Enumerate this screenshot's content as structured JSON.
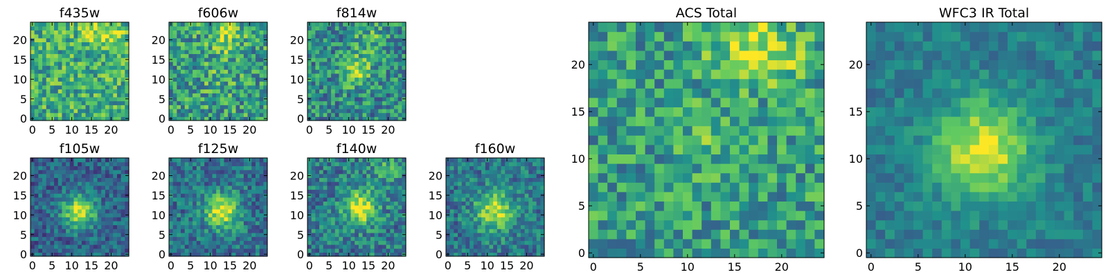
{
  "figure": {
    "colormap": "viridis",
    "colormap_stops": [
      "#440154",
      "#3b528b",
      "#21918c",
      "#5ec962",
      "#fde725"
    ]
  },
  "chart_data": [
    {
      "type": "heatmap",
      "title": "f435w",
      "grid": [
        25,
        25
      ],
      "xticks": [
        "0",
        "5",
        "10",
        "15",
        "20"
      ],
      "yticks": [
        "0",
        "5",
        "10",
        "15",
        "20"
      ],
      "xlim": [
        0,
        24
      ],
      "ylim": [
        0,
        24
      ],
      "noise": 0.26,
      "bias": 0.62,
      "blobs": [
        [
          19,
          21,
          3,
          0.25
        ],
        [
          14,
          22,
          2,
          0.15
        ]
      ],
      "seed": 11
    },
    {
      "type": "heatmap",
      "title": "f606w",
      "grid": [
        25,
        25
      ],
      "xticks": [
        "0",
        "5",
        "10",
        "15",
        "20"
      ],
      "yticks": [
        "0",
        "5",
        "10",
        "15",
        "20"
      ],
      "xlim": [
        0,
        24
      ],
      "ylim": [
        0,
        24
      ],
      "noise": 0.28,
      "bias": 0.55,
      "blobs": [
        [
          14,
          21,
          3,
          0.3
        ],
        [
          12,
          11,
          3,
          0.1
        ]
      ],
      "seed": 23
    },
    {
      "type": "heatmap",
      "title": "f814w",
      "grid": [
        25,
        25
      ],
      "xticks": [
        "0",
        "5",
        "10",
        "15",
        "20"
      ],
      "yticks": [
        "0",
        "5",
        "10",
        "15",
        "20"
      ],
      "xlim": [
        0,
        24
      ],
      "ylim": [
        0,
        24
      ],
      "noise": 0.26,
      "bias": 0.48,
      "blobs": [
        [
          12,
          12,
          2.5,
          0.4
        ],
        [
          15,
          20,
          3,
          0.2
        ]
      ],
      "seed": 37
    },
    {
      "type": "heatmap",
      "title": "f105w",
      "grid": [
        25,
        25
      ],
      "xticks": [
        "0",
        "5",
        "10",
        "15",
        "20"
      ],
      "yticks": [
        "0",
        "5",
        "10",
        "15",
        "20"
      ],
      "xlim": [
        0,
        24
      ],
      "ylim": [
        0,
        24
      ],
      "noise": 0.18,
      "bias": 0.32,
      "blobs": [
        [
          12,
          11,
          3,
          0.6
        ]
      ],
      "seed": 41
    },
    {
      "type": "heatmap",
      "title": "f125w",
      "grid": [
        25,
        25
      ],
      "xticks": [
        "0",
        "5",
        "10",
        "15",
        "20"
      ],
      "yticks": [
        "0",
        "5",
        "10",
        "15",
        "20"
      ],
      "xlim": [
        0,
        24
      ],
      "ylim": [
        0,
        24
      ],
      "noise": 0.2,
      "bias": 0.38,
      "blobs": [
        [
          13,
          11,
          3,
          0.6
        ]
      ],
      "seed": 53
    },
    {
      "type": "heatmap",
      "title": "f140w",
      "grid": [
        25,
        25
      ],
      "xticks": [
        "0",
        "5",
        "10",
        "15",
        "20"
      ],
      "yticks": [
        "0",
        "5",
        "10",
        "15",
        "20"
      ],
      "xlim": [
        0,
        24
      ],
      "ylim": [
        0,
        24
      ],
      "noise": 0.22,
      "bias": 0.42,
      "blobs": [
        [
          13,
          12,
          3,
          0.55
        ],
        [
          20,
          22,
          3,
          0.2
        ]
      ],
      "seed": 67
    },
    {
      "type": "heatmap",
      "title": "f160w",
      "grid": [
        25,
        25
      ],
      "xticks": [
        "0",
        "5",
        "10",
        "15",
        "20"
      ],
      "yticks": [
        "0",
        "5",
        "10",
        "15",
        "20"
      ],
      "xlim": [
        0,
        24
      ],
      "ylim": [
        0,
        24
      ],
      "noise": 0.2,
      "bias": 0.4,
      "blobs": [
        [
          12,
          11,
          3.5,
          0.5
        ]
      ],
      "seed": 79
    },
    {
      "type": "heatmap",
      "title": "ACS Total",
      "grid": [
        25,
        25
      ],
      "xticks": [
        "0",
        "5",
        "10",
        "15",
        "20"
      ],
      "yticks": [
        "0",
        "5",
        "10",
        "15",
        "20"
      ],
      "xlim": [
        0,
        24
      ],
      "ylim": [
        0,
        24
      ],
      "noise": 0.24,
      "bias": 0.55,
      "blobs": [
        [
          16,
          22,
          3,
          0.3
        ],
        [
          20,
          21,
          2,
          0.2
        ],
        [
          12,
          12,
          2,
          0.15
        ]
      ],
      "seed": 97
    },
    {
      "type": "heatmap",
      "title": "WFC3 IR Total",
      "grid": [
        25,
        25
      ],
      "xticks": [
        "0",
        "5",
        "10",
        "15",
        "20"
      ],
      "yticks": [
        "0",
        "5",
        "10",
        "15",
        "20"
      ],
      "xlim": [
        0,
        24
      ],
      "ylim": [
        0,
        24
      ],
      "noise": 0.12,
      "bias": 0.42,
      "blobs": [
        [
          12,
          11,
          3.5,
          0.55
        ]
      ],
      "seed": 101
    }
  ]
}
